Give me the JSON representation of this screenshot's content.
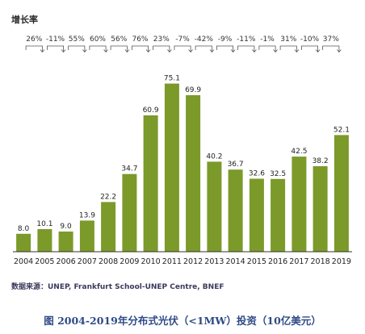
{
  "chart_data": {
    "type": "bar",
    "growth_title": "增长率",
    "categories": [
      "2004",
      "2005",
      "2006",
      "2007",
      "2008",
      "2009",
      "2010",
      "2011",
      "2012",
      "2013",
      "2014",
      "2015",
      "2016",
      "2017",
      "2018",
      "2019"
    ],
    "values": [
      8.0,
      10.1,
      9.0,
      13.9,
      22.2,
      34.7,
      60.9,
      75.1,
      69.9,
      40.2,
      36.7,
      32.6,
      32.5,
      42.5,
      38.2,
      52.1
    ],
    "value_labels": [
      "8.0",
      "10.1",
      "9.0",
      "13.9",
      "22.2",
      "34.7",
      "60.9",
      "75.1",
      "69.9",
      "40.2",
      "36.7",
      "32.6",
      "32.5",
      "42.5",
      "38.2",
      "52.1"
    ],
    "growth_rates": [
      "26%",
      "-11%",
      "55%",
      "60%",
      "56%",
      "76%",
      "23%",
      "-7%",
      "-42%",
      "-9%",
      "-11%",
      "-1%",
      "31%",
      "-10%",
      "37%"
    ],
    "ylim": [
      0,
      80
    ],
    "bar_color": "#7b9a2a",
    "source": "数据来源：UNEP, Frankfurt School-UNEP Centre, BNEF",
    "caption": "图 2004-2019年分布式光伏（<1MW）投资（10亿美元）"
  }
}
